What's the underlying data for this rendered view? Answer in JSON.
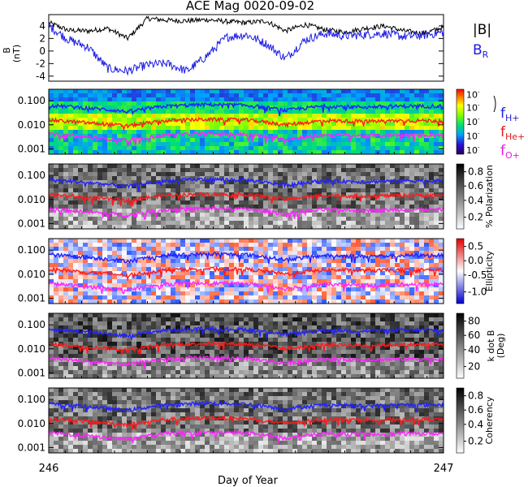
{
  "title": "ACE Mag 0020-09-02",
  "x_axis": {
    "label": "Day of Year",
    "ticks": [
      "246",
      "247"
    ],
    "range": [
      246,
      247
    ]
  },
  "legend_top": {
    "b_mag": "|B|",
    "b_r": "B",
    "b_r_sub": "R"
  },
  "legend_freq": [
    {
      "base": "f",
      "sub": "H+",
      "color": "#1f1fe0"
    },
    {
      "base": "f",
      "sub": "He+",
      "color": "#e01a1a"
    },
    {
      "base": "f",
      "sub": "O+",
      "color": "#e01ae0"
    }
  ],
  "colors": {
    "bmag": "#000000",
    "br": "#1a1ae6",
    "fH": "#2020ff",
    "fHe": "#ff1a1a",
    "fO": "#ff22ff"
  },
  "chart_data": [
    {
      "type": "line",
      "ylabel": "B (nT)",
      "ylim": [
        -4.8,
        5.8
      ],
      "yticks": [
        -4,
        -2,
        0,
        2,
        4
      ],
      "series": [
        {
          "name": "|B|",
          "x": [
            246.0,
            246.05,
            246.1,
            246.15,
            246.2,
            246.25,
            246.3,
            246.35,
            246.4,
            246.45,
            246.5,
            246.55,
            246.6,
            246.65,
            246.7,
            246.75,
            246.8,
            246.85,
            246.9,
            246.95,
            247.0
          ],
          "values": [
            4.5,
            3.3,
            3.2,
            3.6,
            2.0,
            5.2,
            4.9,
            4.8,
            5.0,
            4.7,
            4.5,
            4.8,
            3.2,
            4.2,
            3.4,
            3.0,
            3.6,
            4.0,
            3.2,
            2.8,
            3.8
          ]
        },
        {
          "name": "BR",
          "x": [
            246.0,
            246.05,
            246.1,
            246.15,
            246.2,
            246.25,
            246.3,
            246.35,
            246.4,
            246.45,
            246.5,
            246.55,
            246.6,
            246.65,
            246.7,
            246.75,
            246.8,
            246.85,
            246.9,
            246.95,
            247.0
          ],
          "values": [
            4.0,
            1.8,
            0.6,
            -2.8,
            -3.2,
            -2.2,
            -2.0,
            -3.2,
            -0.8,
            2.2,
            2.6,
            1.2,
            -1.2,
            1.8,
            2.8,
            2.4,
            2.6,
            2.8,
            2.3,
            2.5,
            3.0
          ]
        }
      ]
    },
    {
      "type": "heatmap",
      "ylim": [
        0.0006,
        0.3
      ],
      "yscale": "log",
      "yticks": [
        "0.100",
        "0.010",
        "0.001"
      ],
      "colorbar": "10^n power",
      "series": [
        {
          "name": "fH+",
          "x": [
            246.0,
            246.1,
            246.2,
            246.3,
            246.4,
            246.5,
            246.6,
            246.7,
            246.8,
            246.9,
            247.0
          ],
          "values": [
            0.065,
            0.05,
            0.035,
            0.06,
            0.07,
            0.065,
            0.04,
            0.06,
            0.055,
            0.06,
            0.06
          ]
        },
        {
          "name": "fHe+",
          "x": [
            246.0,
            246.1,
            246.2,
            246.3,
            246.4,
            246.5,
            246.6,
            246.7,
            246.8,
            246.9,
            247.0
          ],
          "values": [
            0.016,
            0.012,
            0.009,
            0.015,
            0.017,
            0.016,
            0.01,
            0.015,
            0.014,
            0.015,
            0.015
          ]
        },
        {
          "name": "fO+",
          "x": [
            246.0,
            246.1,
            246.2,
            246.3,
            246.4,
            246.5,
            246.6,
            246.7,
            246.8,
            246.9,
            247.0
          ],
          "values": [
            0.0041,
            0.003,
            0.0022,
            0.0038,
            0.0043,
            0.004,
            0.0025,
            0.0038,
            0.0035,
            0.0038,
            0.0038
          ]
        }
      ]
    },
    {
      "type": "heatmap",
      "ylim": [
        0.0006,
        0.3
      ],
      "yscale": "log",
      "yticks": [
        "0.100",
        "0.010",
        "0.001"
      ],
      "colorbar_label": "% Polarization",
      "colorbar_ticks": [
        "0.8",
        "0.6",
        "0.4",
        "0.2"
      ]
    },
    {
      "type": "heatmap",
      "ylim": [
        0.0006,
        0.3
      ],
      "yscale": "log",
      "yticks": [
        "0.100",
        "0.010",
        "0.001"
      ],
      "colorbar_label": "Ellipticity",
      "colorbar_ticks": [
        "0.5",
        "0.0",
        "-0.5",
        "-1.0"
      ]
    },
    {
      "type": "heatmap",
      "ylim": [
        0.0006,
        0.3
      ],
      "yscale": "log",
      "yticks": [
        "0.100",
        "0.010",
        "0.001"
      ],
      "colorbar_label": "k dot B",
      "colorbar_label2": "(Deg)",
      "colorbar_ticks": [
        "80",
        "60",
        "40",
        "20"
      ]
    },
    {
      "type": "heatmap",
      "ylim": [
        0.0006,
        0.3
      ],
      "yscale": "log",
      "yticks": [
        "0.100",
        "0.010",
        "0.001"
      ],
      "colorbar_label": "Coherency",
      "colorbar_ticks": [
        "0.8",
        "0.6",
        "0.4",
        "0.2"
      ]
    }
  ]
}
